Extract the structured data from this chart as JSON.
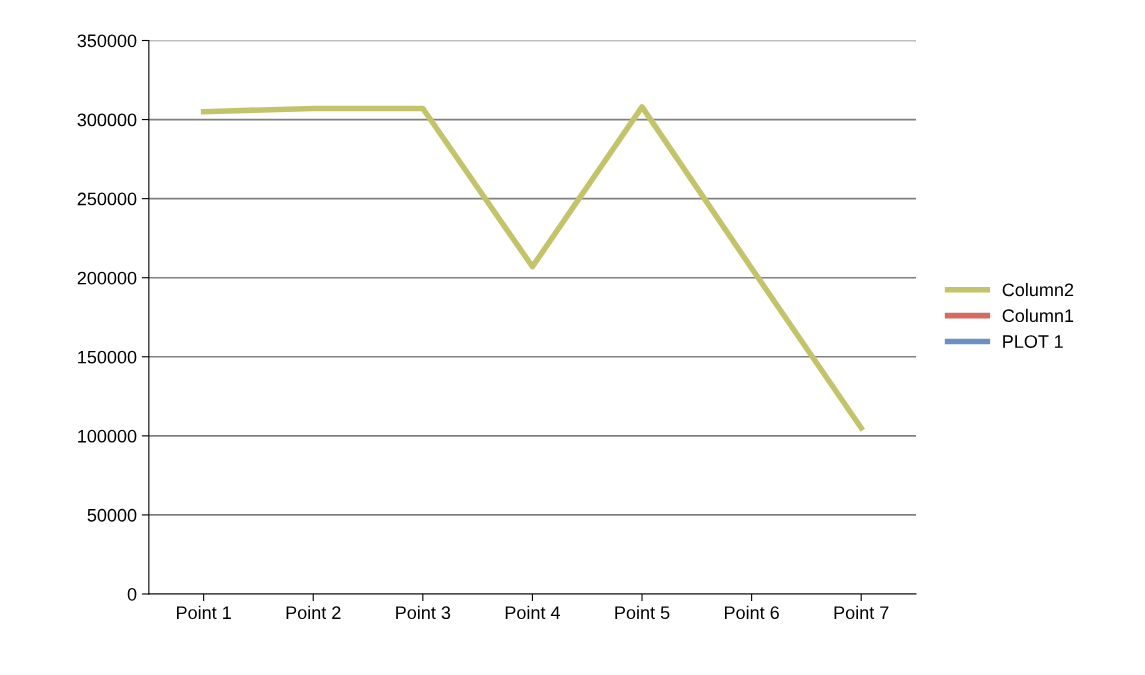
{
  "chart_data": {
    "type": "line",
    "categories": [
      "Point 1",
      "Point 2",
      "Point 3",
      "Point 4",
      "Point 5",
      "Point 6",
      "Point 7"
    ],
    "series": [
      {
        "name": "Column2",
        "color": "#c3c46a",
        "values": [
          305000,
          307000,
          307000,
          207000,
          308000,
          206000,
          105000
        ]
      },
      {
        "name": "Column1",
        "color": "#d66a5e",
        "values": [
          null,
          null,
          null,
          null,
          null,
          null,
          null
        ]
      },
      {
        "name": "PLOT 1",
        "color": "#6d90c4",
        "values": [
          null,
          null,
          null,
          null,
          null,
          null,
          null
        ]
      }
    ],
    "ylim": [
      0,
      350000
    ],
    "yticks": [
      0,
      50000,
      100000,
      150000,
      200000,
      250000,
      300000,
      350000
    ],
    "grid": "y",
    "legend": "right",
    "marker": "none",
    "line_style": "solid"
  }
}
